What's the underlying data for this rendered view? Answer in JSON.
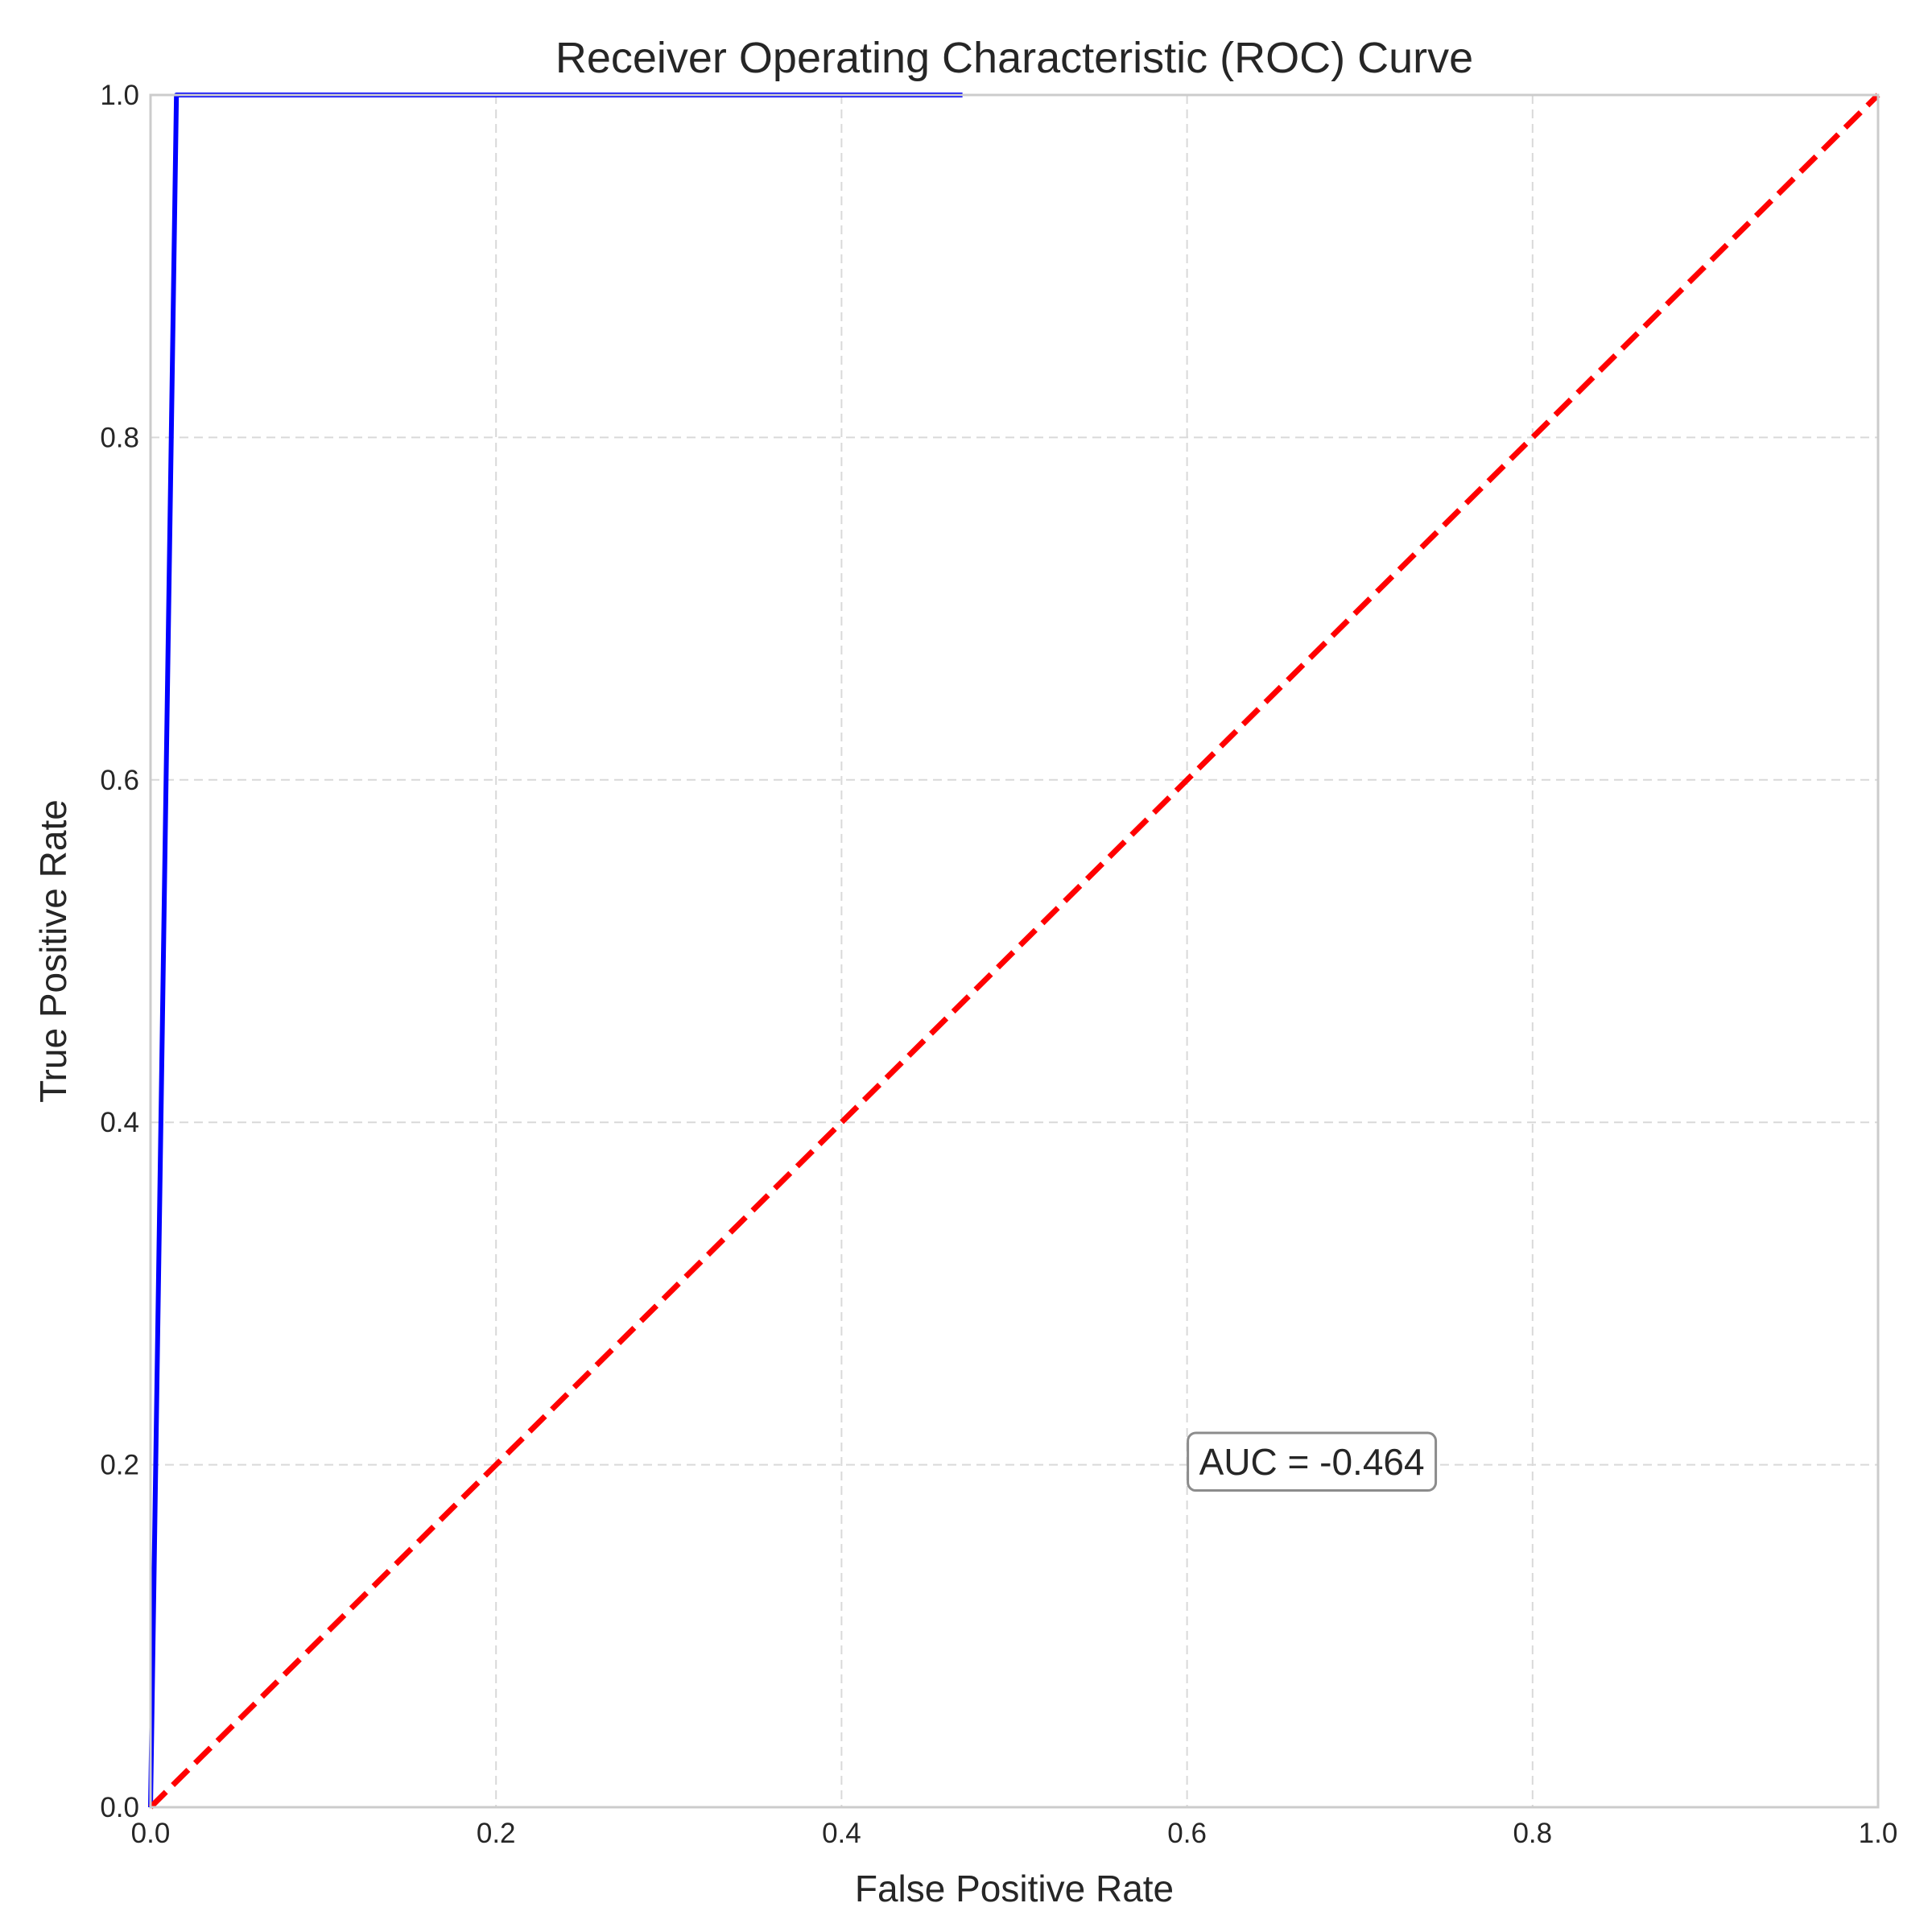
{
  "chart_data": {
    "type": "line",
    "title": "Receiver Operating Characteristic (ROC) Curve",
    "xlabel": "False Positive Rate",
    "ylabel": "True Positive Rate",
    "xlim": [
      0,
      1
    ],
    "ylim": [
      0,
      1
    ],
    "xticks": [
      "0.0",
      "0.2",
      "0.4",
      "0.6",
      "0.8",
      "1.0"
    ],
    "yticks": [
      "0.0",
      "0.2",
      "0.4",
      "0.6",
      "0.8",
      "1.0"
    ],
    "grid": true,
    "grid_style": "dashed",
    "series": [
      {
        "x": [
          0.0,
          0.0,
          0.015,
          0.015,
          0.47
        ],
        "y": [
          0.0,
          0.0,
          1.0,
          1.0,
          1.0
        ],
        "color": "#0000ff",
        "style": "solid"
      },
      {
        "x": [
          0.0,
          1.0
        ],
        "y": [
          0.0,
          1.0
        ],
        "color": "#ff0000",
        "style": "dashed"
      }
    ],
    "annotations": [
      {
        "text": "AUC = -0.464",
        "x": 0.6,
        "y": 0.2
      }
    ]
  }
}
